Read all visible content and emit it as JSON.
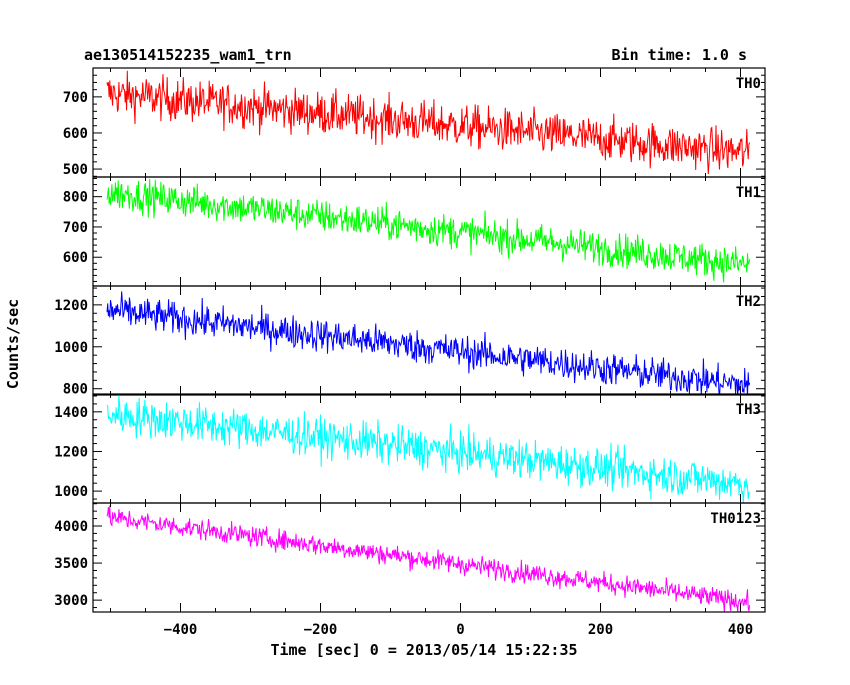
{
  "header": {
    "title": "ae130514152235_wam1_trn",
    "bin_time": "Bin time: 1.0 s"
  },
  "chart_data": {
    "type": "line",
    "xlabel": "Time [sec] 0 = 2013/05/14 15:22:35",
    "ylabel": "Counts/sec",
    "xlim": [
      -525,
      435
    ],
    "x_ticks": [
      -400,
      -200,
      0,
      200,
      400
    ],
    "x_range": [
      -505,
      413
    ],
    "bin_time_s": 1.0,
    "panels": [
      {
        "name": "TH0",
        "color": "#ff0000",
        "ylim": [
          478,
          780
        ],
        "y_ticks": [
          500,
          600,
          700
        ],
        "trend": {
          "start": 710,
          "end": 545
        },
        "noise": 30
      },
      {
        "name": "TH1",
        "color": "#00ff00",
        "ylim": [
          505,
          865
        ],
        "y_ticks": [
          600,
          700,
          800
        ],
        "trend": {
          "start": 815,
          "end": 575
        },
        "noise": 28
      },
      {
        "name": "TH2",
        "color": "#0000ff",
        "ylim": [
          770,
          1290
        ],
        "y_ticks": [
          800,
          1000,
          1200
        ],
        "trend": {
          "start": 1175,
          "end": 815
        },
        "noise": 40
      },
      {
        "name": "TH3",
        "color": "#00ffff",
        "ylim": [
          940,
          1490
        ],
        "y_ticks": [
          1000,
          1200,
          1400
        ],
        "trend": {
          "start": 1390,
          "end": 1035
        },
        "noise": 50
      },
      {
        "name": "TH0123",
        "color": "#ff00ff",
        "ylim": [
          2840,
          4310
        ],
        "y_ticks": [
          3000,
          3500,
          4000
        ],
        "trend": {
          "start": 4120,
          "end": 2970
        },
        "noise": 70
      }
    ]
  }
}
